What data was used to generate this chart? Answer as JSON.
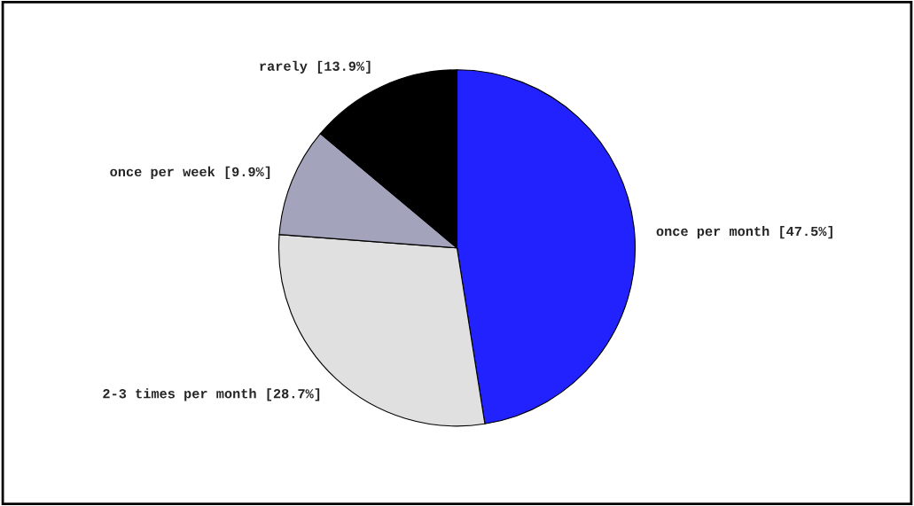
{
  "chart_data": {
    "type": "pie",
    "categories": [
      "once per month",
      "2-3 times per month",
      "once per week",
      "rarely"
    ],
    "values": [
      47.5,
      28.7,
      9.9,
      13.9
    ],
    "value_labels": [
      "[47.5%]",
      "[28.7%]",
      "[9.9%]",
      "[13.9%]"
    ],
    "colors": [
      "#2222ff",
      "#e0e0e0",
      "#a3a3bb",
      "#000000"
    ],
    "legend": false
  }
}
